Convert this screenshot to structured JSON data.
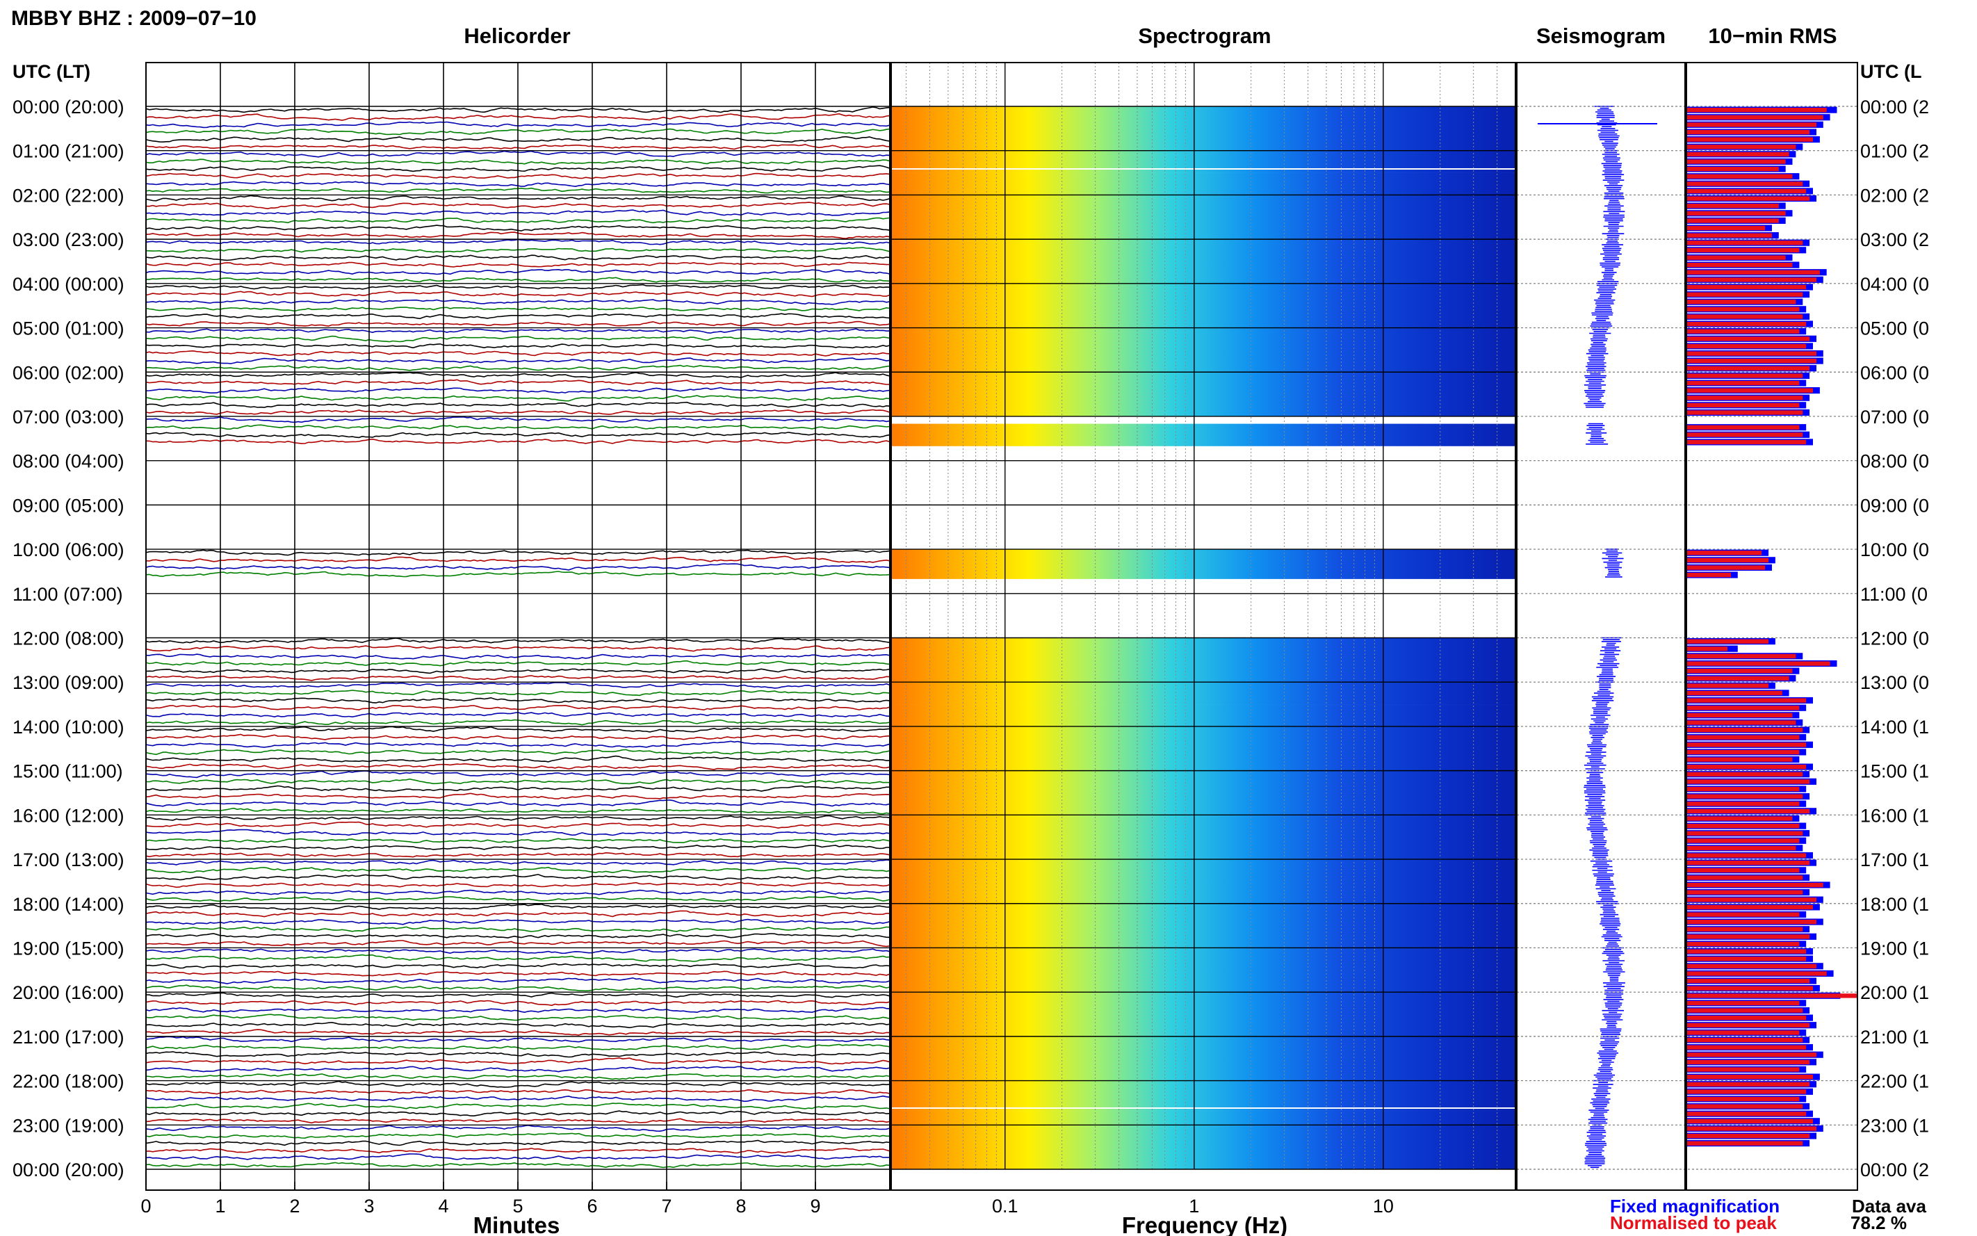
{
  "header": {
    "station_title": "MBBY BHZ : 2009−07−10",
    "panel_titles": {
      "helicorder": "Helicorder",
      "spectrogram": "Spectrogram",
      "seismogram": "Seismogram",
      "rms": "10−min RMS"
    },
    "time_axis_label": "UTC (LT)",
    "time_axis_label_right": "UTC (L"
  },
  "time_labels": [
    "00:00 (20:00)",
    "01:00 (21:00)",
    "02:00 (22:00)",
    "03:00 (23:00)",
    "04:00 (00:00)",
    "05:00 (01:00)",
    "06:00 (02:00)",
    "07:00 (03:00)",
    "08:00 (04:00)",
    "09:00 (05:00)",
    "10:00 (06:00)",
    "11:00 (07:00)",
    "12:00 (08:00)",
    "13:00 (09:00)",
    "14:00 (10:00)",
    "15:00 (11:00)",
    "16:00 (12:00)",
    "17:00 (13:00)",
    "18:00 (14:00)",
    "19:00 (15:00)",
    "20:00 (16:00)",
    "21:00 (17:00)",
    "22:00 (18:00)",
    "23:00 (19:00)",
    "00:00 (20:00)"
  ],
  "time_labels_right": [
    "00:00 (2",
    "01:00 (2",
    "02:00 (2",
    "03:00 (2",
    "04:00 (0",
    "05:00 (0",
    "06:00 (0",
    "07:00 (0",
    "08:00 (0",
    "09:00 (0",
    "10:00 (0",
    "11:00 (0",
    "12:00 (0",
    "13:00 (0",
    "14:00 (1",
    "15:00 (1",
    "16:00 (1",
    "17:00 (1",
    "18:00 (1",
    "19:00 (1",
    "20:00 (1",
    "21:00 (1",
    "22:00 (1",
    "23:00 (1",
    "00:00 (2"
  ],
  "footer": {
    "fixed_magnification": "Fixed magnification",
    "normalised_to_peak": "Normalised to peak",
    "data_availability_label": "Data ava",
    "data_availability_value": "78.2 %"
  },
  "colors": {
    "fixed": "#0000ff",
    "normalised": "#e8101a",
    "trace_cycle": [
      "#000000",
      "#b00000",
      "#0000b0",
      "#008000"
    ]
  },
  "chart_data": [
    {
      "type": "line",
      "panel": "helicorder",
      "title": "Helicorder",
      "xlabel": "Minutes",
      "x_ticks": [
        "0",
        "1",
        "2",
        "3",
        "4",
        "5",
        "6",
        "7",
        "8",
        "9"
      ],
      "xlim": [
        0,
        10
      ],
      "rows_per_hour": 6,
      "grid": true
    },
    {
      "type": "heatmap",
      "panel": "spectrogram",
      "title": "Spectrogram",
      "xlabel": "Frequency (Hz)",
      "x_scale": "log",
      "x_ticks": [
        "0.1",
        "1",
        "10"
      ],
      "xlim": [
        0.025,
        50
      ],
      "grid": true
    },
    {
      "type": "line",
      "panel": "seismogram",
      "title": "Seismogram",
      "orientation": "vertical"
    },
    {
      "type": "bar",
      "panel": "rms",
      "title": "10−min RMS",
      "orientation": "horizontal",
      "interval_minutes": 10,
      "series": [
        {
          "name": "Fixed magnification",
          "values": [
            0.88,
            0.84,
            0.8,
            0.76,
            0.78,
            0.68,
            0.64,
            0.62,
            0.58,
            0.66,
            0.72,
            0.74,
            0.76,
            0.58,
            0.62,
            0.58,
            0.5,
            0.54,
            0.72,
            0.7,
            0.62,
            0.66,
            0.82,
            0.8,
            0.74,
            0.72,
            0.68,
            0.7,
            0.72,
            0.74,
            0.7,
            0.76,
            0.74,
            0.8,
            0.8,
            0.76,
            0.72,
            0.7,
            0.78,
            0.72,
            0.7,
            0.72,
            null,
            0.7,
            0.72,
            0.74,
            null,
            null,
            null,
            null,
            null,
            null,
            null,
            null,
            null,
            null,
            null,
            null,
            null,
            null,
            0.48,
            0.52,
            0.5,
            0.3,
            null,
            null,
            null,
            null,
            null,
            null,
            null,
            null,
            0.52,
            0.3,
            0.68,
            0.88,
            0.66,
            0.64,
            0.52,
            0.6,
            0.74,
            0.7,
            0.66,
            0.68,
            0.72,
            0.7,
            0.74,
            0.7,
            0.66,
            0.74,
            0.72,
            0.76,
            0.7,
            0.72,
            0.7,
            0.76,
            0.66,
            0.7,
            0.72,
            0.7,
            0.68,
            0.74,
            0.76,
            0.7,
            0.72,
            0.84,
            0.72,
            0.8,
            0.78,
            0.7,
            0.8,
            0.72,
            0.76,
            0.7,
            0.74,
            0.74,
            0.8,
            0.86,
            0.76,
            0.78,
            0.9,
            0.7,
            0.72,
            0.74,
            0.76,
            0.7,
            0.72,
            0.74,
            0.8,
            0.76,
            0.7,
            0.78,
            0.76,
            0.74,
            0.7,
            0.72,
            0.74,
            0.78,
            0.8,
            0.76,
            0.72
          ],
          "color": "#0000ff"
        },
        {
          "name": "Normalised to peak",
          "values": [
            0.82,
            0.8,
            0.76,
            0.72,
            0.74,
            0.64,
            0.6,
            0.58,
            0.54,
            0.62,
            0.68,
            0.7,
            0.72,
            0.54,
            0.58,
            0.54,
            0.46,
            0.5,
            0.68,
            0.66,
            0.58,
            0.62,
            0.78,
            0.76,
            0.7,
            0.68,
            0.64,
            0.66,
            0.68,
            0.7,
            0.66,
            0.72,
            0.7,
            0.76,
            0.76,
            0.72,
            0.68,
            0.66,
            0.74,
            0.68,
            0.66,
            0.68,
            null,
            0.66,
            0.68,
            0.7,
            null,
            null,
            null,
            null,
            null,
            null,
            null,
            null,
            null,
            null,
            null,
            null,
            null,
            null,
            0.44,
            0.48,
            0.46,
            0.26,
            null,
            null,
            null,
            null,
            null,
            null,
            null,
            null,
            0.48,
            0.24,
            0.64,
            0.84,
            0.62,
            0.6,
            0.48,
            0.56,
            0.7,
            0.66,
            0.62,
            0.64,
            0.68,
            0.66,
            0.7,
            0.66,
            0.62,
            0.7,
            0.68,
            0.72,
            0.66,
            0.68,
            0.66,
            0.72,
            0.62,
            0.66,
            0.68,
            0.66,
            0.64,
            0.7,
            0.72,
            0.66,
            0.68,
            0.8,
            0.68,
            0.76,
            0.74,
            0.66,
            0.76,
            0.68,
            0.72,
            0.66,
            0.7,
            0.7,
            0.76,
            0.82,
            0.72,
            0.74,
            1.0,
            0.66,
            0.68,
            0.7,
            0.72,
            0.66,
            0.68,
            0.7,
            0.76,
            0.72,
            0.66,
            0.74,
            0.72,
            0.7,
            0.66,
            0.68,
            0.7,
            0.74,
            0.76,
            0.72,
            0.68
          ],
          "color": "#e8101a"
        }
      ]
    }
  ]
}
